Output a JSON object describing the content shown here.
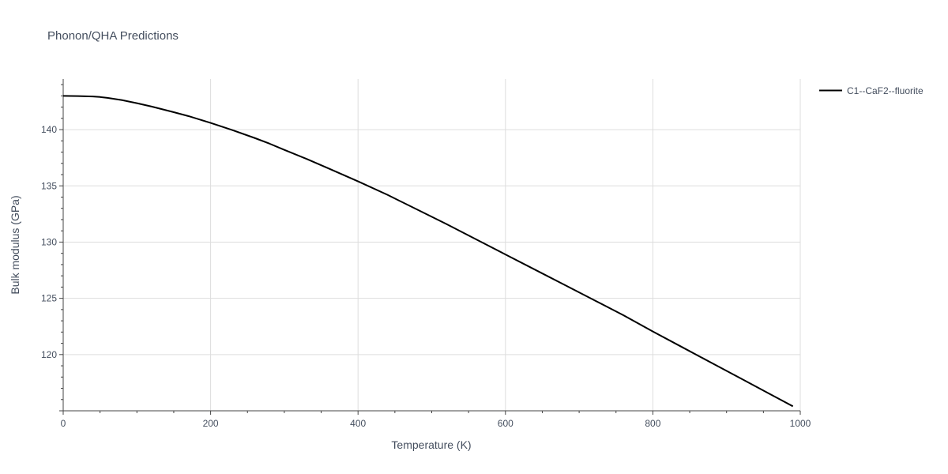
{
  "chart_data": {
    "type": "line",
    "title": "Phonon/QHA Predictions",
    "xlabel": "Temperature (K)",
    "ylabel": "Bulk modulus (GPa)",
    "xlim": [
      0,
      1000
    ],
    "ylim": [
      115,
      144.5
    ],
    "x_ticks": [
      0,
      200,
      400,
      600,
      800,
      1000
    ],
    "y_ticks": [
      120,
      125,
      130,
      135,
      140
    ],
    "grid": true,
    "legend_position": "top-right",
    "colors": {
      "line": "#000000",
      "grid": "#dddddd",
      "text": "#444e5e"
    },
    "series": [
      {
        "name": "C1--CaF2--fluorite",
        "x": [
          0,
          20,
          40,
          50,
          60,
          80,
          100,
          120,
          150,
          170,
          200,
          230,
          260,
          280,
          300,
          330,
          360,
          400,
          440,
          480,
          520,
          560,
          600,
          640,
          680,
          720,
          760,
          800,
          840,
          880,
          920,
          960,
          990
        ],
        "y": [
          143.0,
          142.98,
          142.95,
          142.9,
          142.82,
          142.62,
          142.35,
          142.05,
          141.55,
          141.2,
          140.6,
          139.95,
          139.25,
          138.75,
          138.2,
          137.4,
          136.55,
          135.4,
          134.2,
          132.9,
          131.6,
          130.25,
          128.9,
          127.55,
          126.2,
          124.85,
          123.5,
          122.05,
          120.65,
          119.25,
          117.85,
          116.45,
          115.4
        ]
      }
    ]
  }
}
